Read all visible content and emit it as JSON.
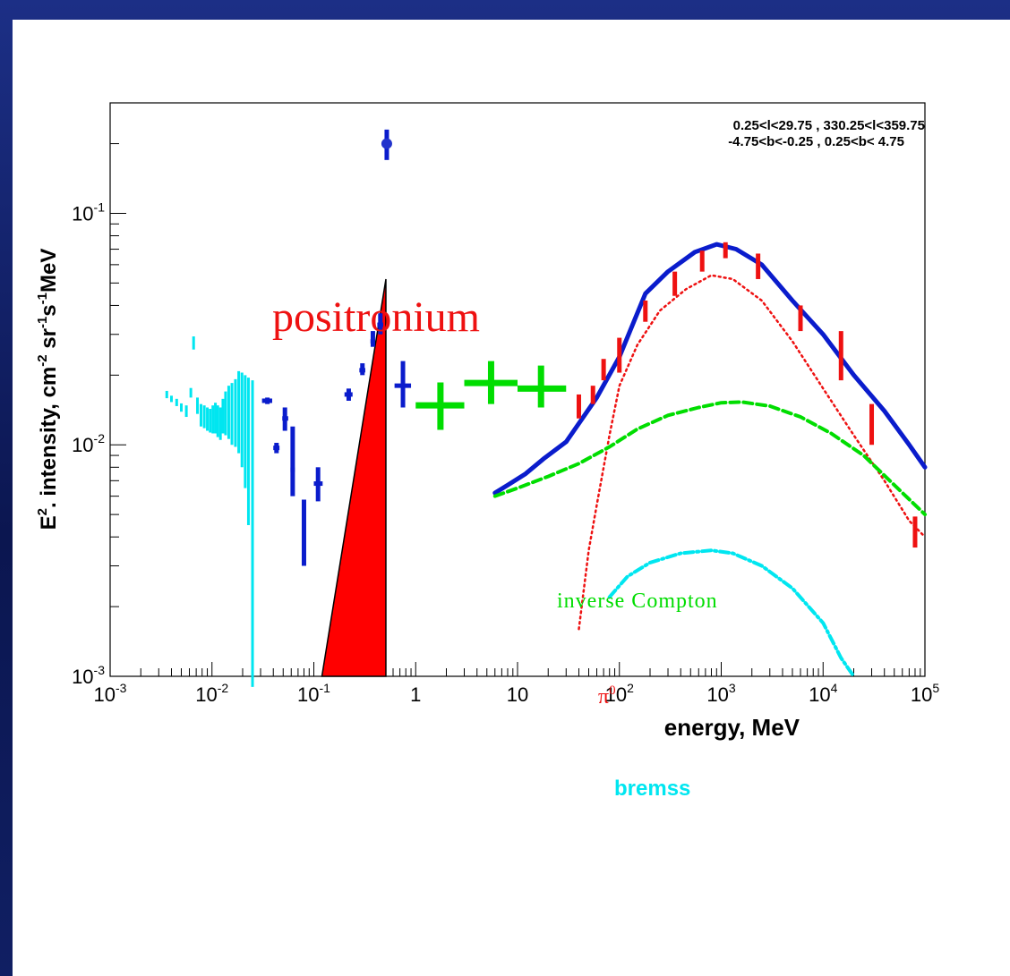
{
  "chart_data": {
    "type": "scatter",
    "xlabel": "energy, MeV",
    "ylabel_parts": {
      "base": "E",
      "sup1": "2",
      "mid": ". intensity, cm",
      "sup2": "-2",
      "mid2": " sr",
      "sup3": "-1",
      "mid3": "s",
      "sup4": "-1",
      "tail": "MeV"
    },
    "xscale": "log",
    "yscale": "log",
    "xlim": [
      0.001,
      100000
    ],
    "ylim": [
      0.001,
      0.3
    ],
    "x_ticks": [
      {
        "v": 0.001,
        "base": "10",
        "exp": "-3"
      },
      {
        "v": 0.01,
        "base": "10",
        "exp": "-2"
      },
      {
        "v": 0.1,
        "base": "10",
        "exp": "-1"
      },
      {
        "v": 1,
        "base": "1",
        "exp": ""
      },
      {
        "v": 10,
        "base": "10",
        "exp": ""
      },
      {
        "v": 100,
        "base": "10",
        "exp": "2"
      },
      {
        "v": 1000,
        "base": "10",
        "exp": "3"
      },
      {
        "v": 10000,
        "base": "10",
        "exp": "4"
      },
      {
        "v": 100000,
        "base": "10",
        "exp": "5"
      }
    ],
    "y_ticks": [
      {
        "v": 0.001,
        "base": "10",
        "exp": "-3"
      },
      {
        "v": 0.01,
        "base": "10",
        "exp": "-2"
      },
      {
        "v": 0.1,
        "base": "10",
        "exp": "-1"
      }
    ],
    "region_text": [
      "0.25<l<29.75 , 330.25<l<359.75",
      "-4.75<b<-0.25 ,  0.25<b< 4.75"
    ],
    "annotations": {
      "positronium": "positronium",
      "inverse_compton": "inverse Compton",
      "pi0": "π",
      "pi0_sup": "0",
      "bremss": "bremss"
    },
    "colors": {
      "cyan": "#00e6f0",
      "blue": "#0a1ccc",
      "green": "#00dd00",
      "red": "#ee1111",
      "black": "#000000"
    },
    "series": [
      {
        "key": "cyan_data",
        "color": "#00e6f0",
        "points": [
          [
            0.0036,
            0.0165,
            0.0159,
            0.0171
          ],
          [
            0.004,
            0.0158,
            0.0153,
            0.0163
          ],
          [
            0.0045,
            0.0152,
            0.0147,
            0.0158
          ],
          [
            0.005,
            0.0145,
            0.0139,
            0.0151
          ],
          [
            0.0056,
            0.014,
            0.0132,
            0.0148
          ],
          [
            0.0062,
            0.0168,
            0.016,
            0.0176
          ],
          [
            0.0066,
            0.027,
            0.0258,
            0.0294
          ],
          [
            0.0072,
            0.0148,
            0.0136,
            0.016
          ],
          [
            0.0078,
            0.0135,
            0.012,
            0.015
          ],
          [
            0.0084,
            0.0133,
            0.0118,
            0.0148
          ],
          [
            0.009,
            0.013,
            0.0115,
            0.0145
          ],
          [
            0.0096,
            0.0128,
            0.0113,
            0.0143
          ],
          [
            0.0102,
            0.013,
            0.0112,
            0.0148
          ],
          [
            0.0108,
            0.0132,
            0.0112,
            0.0152
          ],
          [
            0.0114,
            0.0128,
            0.0108,
            0.0148
          ],
          [
            0.0121,
            0.0125,
            0.0105,
            0.0145
          ],
          [
            0.0128,
            0.0135,
            0.0112,
            0.0158
          ],
          [
            0.0136,
            0.014,
            0.011,
            0.017
          ],
          [
            0.0146,
            0.0145,
            0.0106,
            0.018
          ],
          [
            0.0157,
            0.014,
            0.01,
            0.0185
          ],
          [
            0.017,
            0.0148,
            0.0098,
            0.0192
          ],
          [
            0.0183,
            0.015,
            0.0092,
            0.0208
          ],
          [
            0.0197,
            0.014,
            0.008,
            0.0205
          ],
          [
            0.0212,
            0.0125,
            0.0065,
            0.02
          ],
          [
            0.0228,
            0.0115,
            0.0045,
            0.0195
          ],
          [
            0.025,
            0.01,
            0.0009,
            0.019
          ]
        ]
      },
      {
        "key": "blue_data",
        "color": "#0a1ccc",
        "points": [
          [
            0.035,
            0.0155,
            0.015,
            0.016,
            0.031,
            0.039
          ],
          [
            0.043,
            0.0097,
            0.0092,
            0.0102,
            0.04,
            0.046
          ],
          [
            0.052,
            0.013,
            0.0115,
            0.0145,
            0.049,
            0.056
          ],
          [
            0.062,
            0.0078,
            0.006,
            0.012,
            0.059,
            0.065
          ],
          [
            0.08,
            0.0045,
            0.003,
            0.0058,
            0.077,
            0.083
          ],
          [
            0.11,
            0.0068,
            0.0057,
            0.008,
            0.1,
            0.122
          ],
          [
            0.22,
            0.0165,
            0.0155,
            0.0175,
            0.2,
            0.24
          ],
          [
            0.3,
            0.021,
            0.02,
            0.0225,
            0.28,
            0.32
          ],
          [
            0.38,
            0.028,
            0.0265,
            0.031,
            0.36,
            0.4
          ],
          [
            0.45,
            0.033,
            0.03,
            0.037,
            0.42,
            0.48
          ],
          [
            0.52,
            0.2,
            0.17,
            0.23,
            0.52,
            0.52
          ],
          [
            0.75,
            0.018,
            0.0145,
            0.023,
            0.62,
            0.9
          ]
        ]
      },
      {
        "key": "green_data",
        "color": "#00dd00",
        "points": [
          [
            1.75,
            0.0148,
            0.0116,
            0.0186,
            1.0,
            3.0
          ],
          [
            5.5,
            0.0185,
            0.015,
            0.023,
            3.0,
            10.0
          ],
          [
            17.0,
            0.0175,
            0.0145,
            0.022,
            10.0,
            30.0
          ]
        ]
      },
      {
        "key": "red_data",
        "color": "#ee1111",
        "points": [
          [
            40,
            0.0145,
            0.013,
            0.0165
          ],
          [
            55,
            0.0165,
            0.015,
            0.018
          ],
          [
            70,
            0.021,
            0.019,
            0.0235
          ],
          [
            100,
            0.025,
            0.0205,
            0.029
          ],
          [
            180,
            0.0375,
            0.034,
            0.042
          ],
          [
            350,
            0.05,
            0.044,
            0.056
          ],
          [
            650,
            0.062,
            0.056,
            0.069
          ],
          [
            1100,
            0.069,
            0.064,
            0.075
          ],
          [
            2300,
            0.059,
            0.052,
            0.067
          ],
          [
            6000,
            0.036,
            0.031,
            0.04
          ],
          [
            15000,
            0.025,
            0.019,
            0.031
          ],
          [
            30000,
            0.0125,
            0.01,
            0.015
          ],
          [
            80000,
            0.0043,
            0.0036,
            0.0049
          ]
        ]
      }
    ],
    "curves": [
      {
        "key": "total",
        "color": "#0a1ccc",
        "style": "solid",
        "points": [
          [
            6,
            0.0062
          ],
          [
            8,
            0.0067
          ],
          [
            12,
            0.0075
          ],
          [
            18,
            0.0087
          ],
          [
            30,
            0.0103
          ],
          [
            60,
            0.016
          ],
          [
            100,
            0.024
          ],
          [
            180,
            0.045
          ],
          [
            300,
            0.056
          ],
          [
            550,
            0.068
          ],
          [
            900,
            0.0735
          ],
          [
            1400,
            0.07
          ],
          [
            2500,
            0.06
          ],
          [
            5000,
            0.042
          ],
          [
            10000,
            0.03
          ],
          [
            20000,
            0.02
          ],
          [
            40000,
            0.014
          ],
          [
            70000,
            0.01
          ],
          [
            100000,
            0.008
          ]
        ]
      },
      {
        "key": "pi0",
        "color": "#ee1111",
        "style": "dotted",
        "points": [
          [
            40,
            0.0016
          ],
          [
            50,
            0.0035
          ],
          [
            60,
            0.0055
          ],
          [
            80,
            0.011
          ],
          [
            100,
            0.018
          ],
          [
            150,
            0.027
          ],
          [
            250,
            0.038
          ],
          [
            450,
            0.047
          ],
          [
            800,
            0.054
          ],
          [
            1300,
            0.052
          ],
          [
            2500,
            0.042
          ],
          [
            5000,
            0.028
          ],
          [
            10000,
            0.0175
          ],
          [
            20000,
            0.011
          ],
          [
            40000,
            0.007
          ],
          [
            70000,
            0.0047
          ],
          [
            100000,
            0.004
          ]
        ]
      },
      {
        "key": "inverse_compton",
        "color": "#00dd00",
        "style": "dashed",
        "points": [
          [
            6,
            0.006
          ],
          [
            10,
            0.0065
          ],
          [
            20,
            0.0073
          ],
          [
            40,
            0.0083
          ],
          [
            80,
            0.0098
          ],
          [
            150,
            0.0117
          ],
          [
            300,
            0.0134
          ],
          [
            600,
            0.0145
          ],
          [
            1000,
            0.0152
          ],
          [
            1600,
            0.0153
          ],
          [
            3000,
            0.0147
          ],
          [
            6000,
            0.0132
          ],
          [
            12000,
            0.0112
          ],
          [
            25000,
            0.009
          ],
          [
            50000,
            0.0067
          ],
          [
            100000,
            0.005
          ]
        ]
      },
      {
        "key": "bremss",
        "color": "#00e6f0",
        "style": "dashdot",
        "points": [
          [
            80,
            0.0022
          ],
          [
            120,
            0.0027
          ],
          [
            200,
            0.0031
          ],
          [
            400,
            0.0034
          ],
          [
            800,
            0.0035
          ],
          [
            1300,
            0.0034
          ],
          [
            2500,
            0.003
          ],
          [
            5000,
            0.0024
          ],
          [
            10000,
            0.0017
          ],
          [
            15000,
            0.0012
          ],
          [
            20000,
            0.001
          ]
        ]
      }
    ],
    "positronium_band": {
      "color": "#ff0000",
      "x_lo": 0.12,
      "x_hi": 0.51,
      "x_peak": 0.51,
      "y_peak": 0.052
    }
  }
}
